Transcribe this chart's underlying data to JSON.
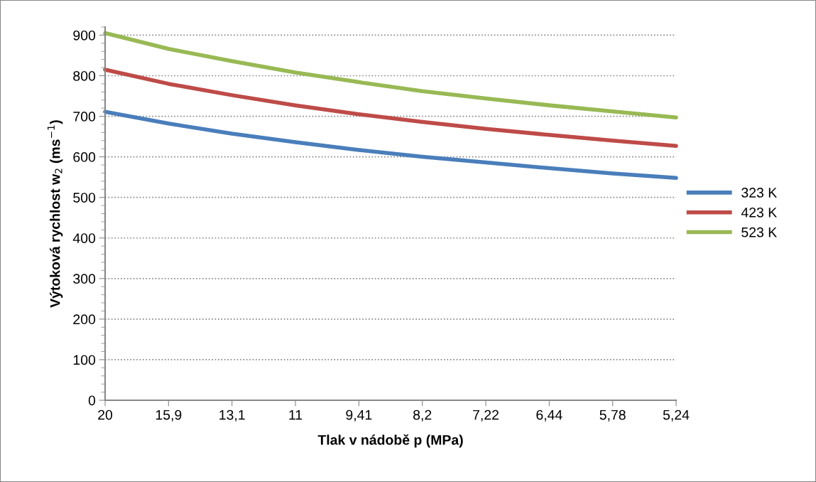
{
  "chart_data": {
    "type": "line",
    "xlabel": "Tlak v nádobě p (MPa)",
    "ylabel": "Výtoková rychlost w$_{2}$ (ms$^{−1}$)",
    "categories": [
      "20",
      "15,9",
      "13,1",
      "11",
      "9,41",
      "8,2",
      "7,22",
      "6,44",
      "5,78",
      "5,24"
    ],
    "series": [
      {
        "name": "323 K",
        "color": "#4a7ebb",
        "values": [
          711,
          682,
          657,
          636,
          617,
          600,
          586,
          572,
          559,
          548
        ]
      },
      {
        "name": "423 K",
        "color": "#be4b48",
        "values": [
          815,
          780,
          752,
          727,
          705,
          686,
          669,
          654,
          640,
          627
        ]
      },
      {
        "name": "523 K",
        "color": "#98b954",
        "values": [
          905,
          866,
          836,
          808,
          784,
          762,
          744,
          727,
          712,
          697
        ]
      }
    ],
    "ylim": [
      0,
      920
    ],
    "yticks": [
      0,
      100,
      200,
      300,
      400,
      500,
      600,
      700,
      800,
      900
    ],
    "grid": "y",
    "legend": "right",
    "marker": "none",
    "line_style": "solid"
  }
}
